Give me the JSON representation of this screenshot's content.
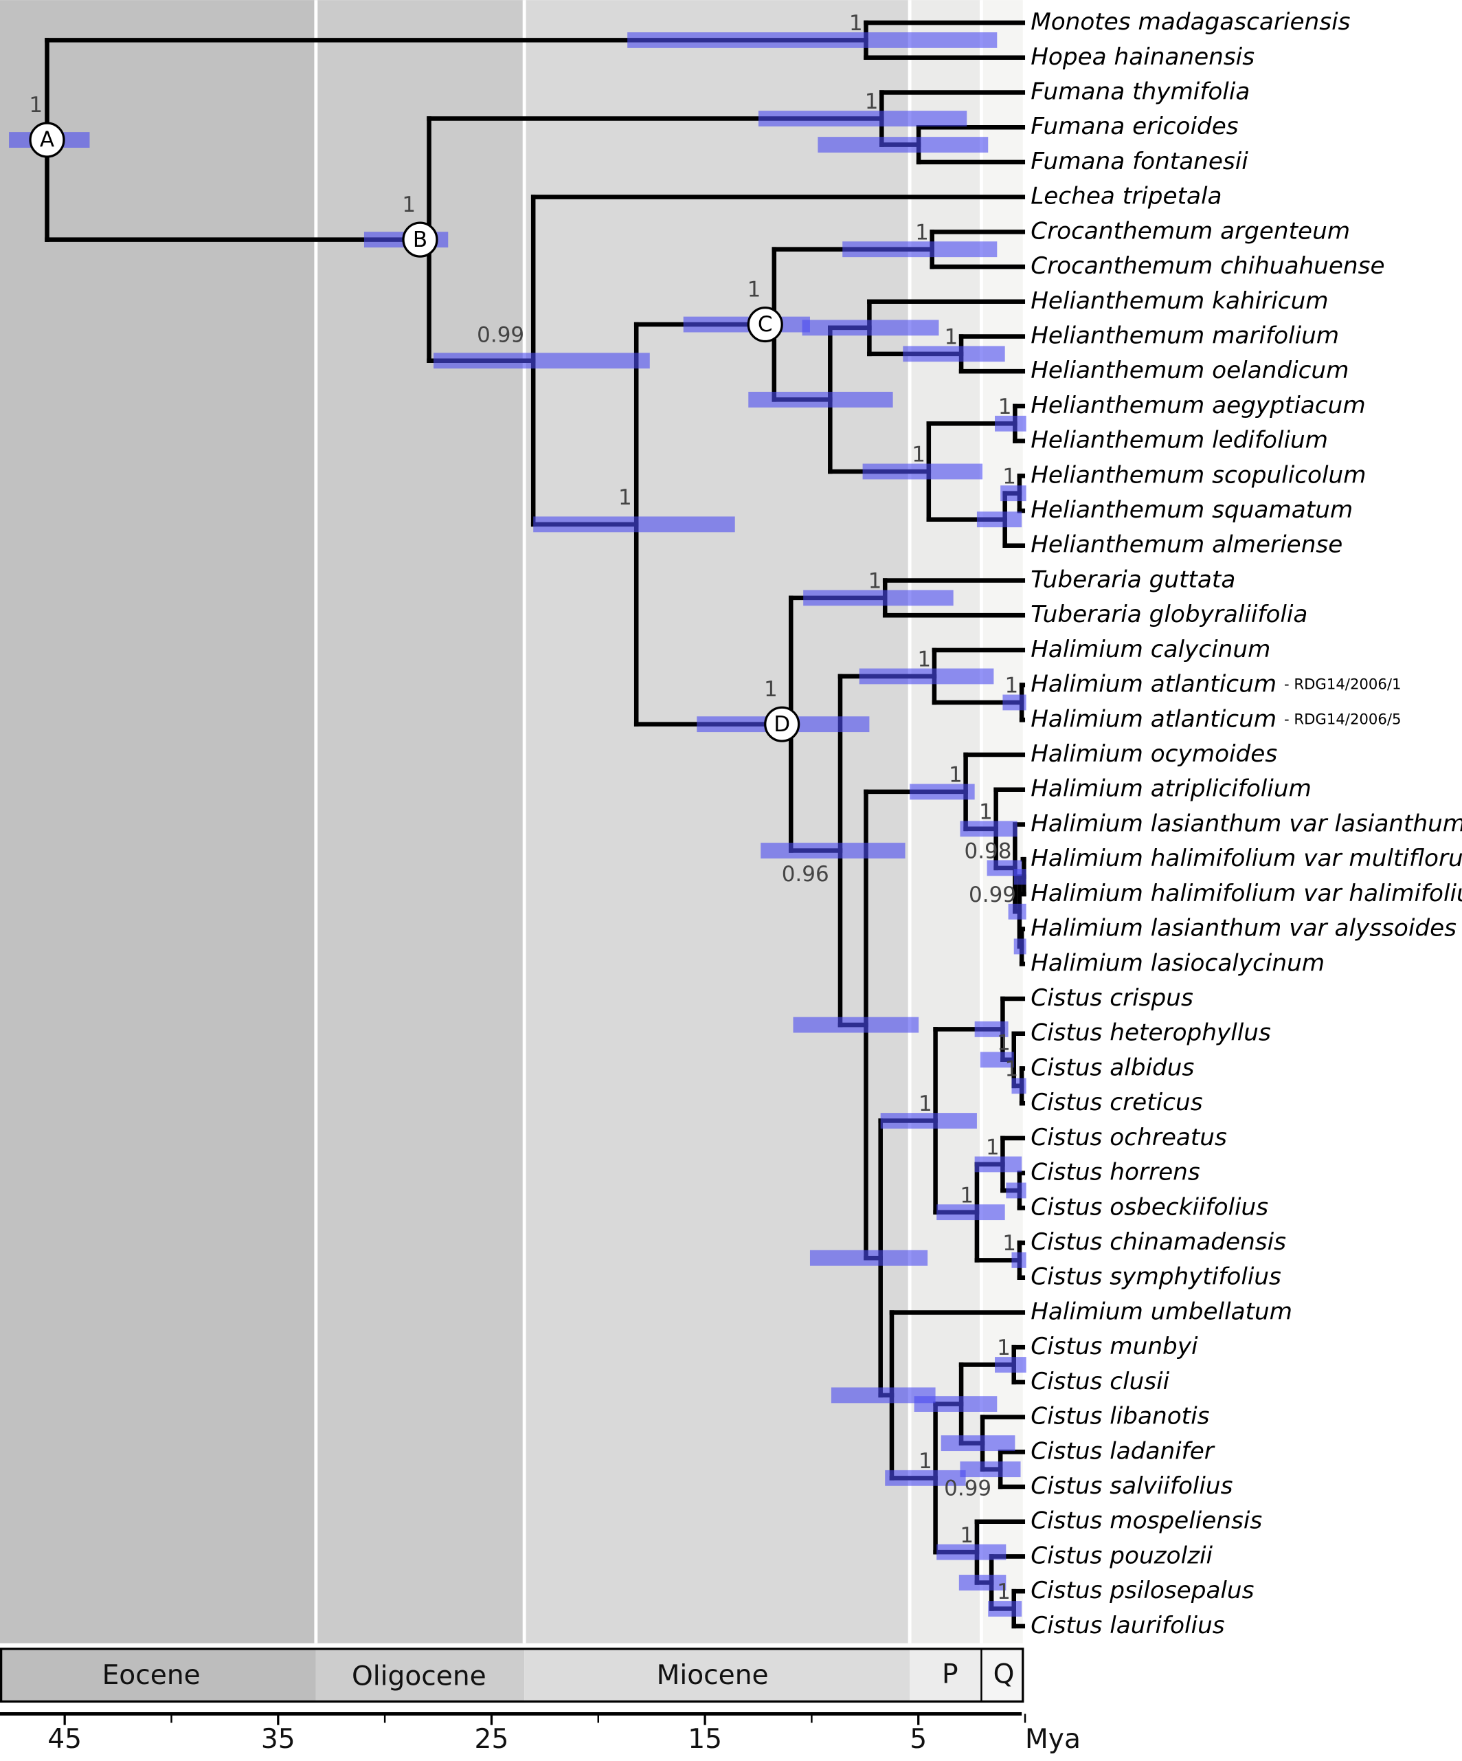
{
  "taxa": [
    {
      "name": "Monotes madagascariensis"
    },
    {
      "name": "Hopea hainanensis"
    },
    {
      "name": "Fumana thymifolia"
    },
    {
      "name": "Fumana ericoides"
    },
    {
      "name": "Fumana fontanesii"
    },
    {
      "name": "Lechea tripetala"
    },
    {
      "name": "Crocanthemum argenteum"
    },
    {
      "name": "Crocanthemum chihuahuense"
    },
    {
      "name": "Helianthemum kahiricum"
    },
    {
      "name": "Helianthemum marifolium"
    },
    {
      "name": "Helianthemum oelandicum"
    },
    {
      "name": "Helianthemum aegyptiacum"
    },
    {
      "name": "Helianthemum ledifolium"
    },
    {
      "name": "Helianthemum scopulicolum"
    },
    {
      "name": "Helianthemum squamatum"
    },
    {
      "name": "Helianthemum almeriense"
    },
    {
      "name": "Tuberaria guttata"
    },
    {
      "name": "Tuberaria globyraliifolia"
    },
    {
      "name": "Halimium calycinum"
    },
    {
      "name": "Halimium atlanticum",
      "voucher": "- RDG14/2006/1"
    },
    {
      "name": "Halimium atlanticum",
      "voucher": "- RDG14/2006/5"
    },
    {
      "name": "Halimium ocymoides"
    },
    {
      "name": "Halimium atriplicifolium"
    },
    {
      "name": "Halimium lasianthum var lasianthum"
    },
    {
      "name": "Halimium halimifolium var multiflorum"
    },
    {
      "name": "Halimium halimifolium var halimifolium"
    },
    {
      "name": "Halimium lasianthum var alyssoides"
    },
    {
      "name": "Halimium lasiocalycinum"
    },
    {
      "name": "Cistus crispus"
    },
    {
      "name": "Cistus heterophyllus"
    },
    {
      "name": "Cistus albidus"
    },
    {
      "name": "Cistus creticus"
    },
    {
      "name": "Cistus ochreatus"
    },
    {
      "name": "Cistus horrens"
    },
    {
      "name": "Cistus osbeckiifolius"
    },
    {
      "name": "Cistus chinamadensis"
    },
    {
      "name": "Cistus symphytifolius"
    },
    {
      "name": "Halimium umbellatum"
    },
    {
      "name": "Cistus munbyi"
    },
    {
      "name": "Cistus clusii"
    },
    {
      "name": "Cistus libanotis"
    },
    {
      "name": "Cistus ladanifer"
    },
    {
      "name": "Cistus salviifolius"
    },
    {
      "name": "Cistus mospeliensis"
    },
    {
      "name": "Cistus pouzolzii"
    },
    {
      "name": "Cistus psilosepalus"
    },
    {
      "name": "Cistus laurifolius"
    }
  ],
  "nodes": [
    {
      "label": "A",
      "support": "1"
    },
    {
      "support": "1"
    },
    {
      "label": "B",
      "support": "1"
    },
    {
      "support": "1"
    },
    {},
    {
      "support": "0.99"
    },
    {
      "support": "1"
    },
    {
      "label": "C",
      "support": "1"
    },
    {
      "support": "1"
    },
    {},
    {},
    {
      "support": "1"
    },
    {
      "support": "1"
    },
    {
      "support": "1"
    },
    {},
    {
      "support": "1"
    },
    {
      "label": "D",
      "support": "1"
    },
    {
      "support": "1"
    },
    {
      "support": "0.96"
    },
    {
      "support": "1"
    },
    {
      "support": "1"
    },
    {},
    {
      "support": "1"
    },
    {
      "support": "1"
    },
    {
      "support": "0.98"
    },
    {
      "support": "0.99"
    },
    {},
    {},
    {},
    {
      "support": "1"
    },
    {},
    {
      "support": "1"
    },
    {
      "support": "1"
    },
    {
      "support": "1"
    },
    {
      "support": "1"
    },
    {},
    {
      "support": "1"
    },
    {},
    {
      "support": "1"
    },
    {},
    {
      "support": "1"
    },
    {},
    {
      "support": "0.99"
    },
    {
      "support": "1"
    },
    {},
    {
      "support": "1"
    }
  ],
  "epochs": [
    "Eocene",
    "Oligocene",
    "Miocene",
    "P",
    "Q"
  ],
  "axis": {
    "ticks": [
      45,
      35,
      25,
      15,
      5
    ],
    "unit": "Mya"
  }
}
